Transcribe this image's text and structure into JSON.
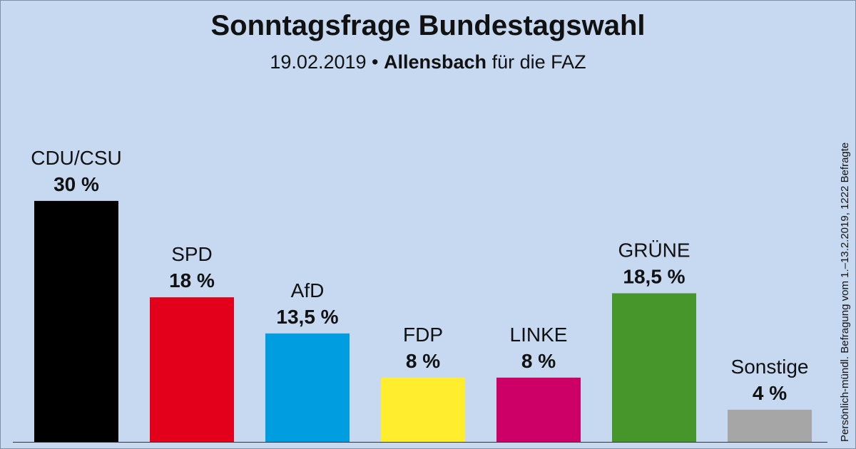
{
  "title": "Sonntagsfrage Bundestagswahl",
  "subtitle": {
    "date": "19.02.2019 •",
    "institute": "Allensbach",
    "client": "für die FAZ"
  },
  "side_note": "Persönlich-mündl. Befragung vom 1.–13.2.2019, 1222 Befragte",
  "chart_data": {
    "type": "bar",
    "categories": [
      "CDU/CSU",
      "SPD",
      "AfD",
      "FDP",
      "LINKE",
      "GRÜNE",
      "Sonstige"
    ],
    "values": [
      30,
      18,
      13.5,
      8,
      8,
      18.5,
      4
    ],
    "value_labels": [
      "30 %",
      "18 %",
      "13,5 %",
      "8 %",
      "8 %",
      "18,5 %",
      "4 %"
    ],
    "colors": [
      "#000000",
      "#e3001b",
      "#009ee0",
      "#ffed2e",
      "#cc0066",
      "#46962b",
      "#a6a6a6"
    ],
    "grid": false,
    "legend": "none",
    "ylim": [
      0,
      30
    ]
  }
}
